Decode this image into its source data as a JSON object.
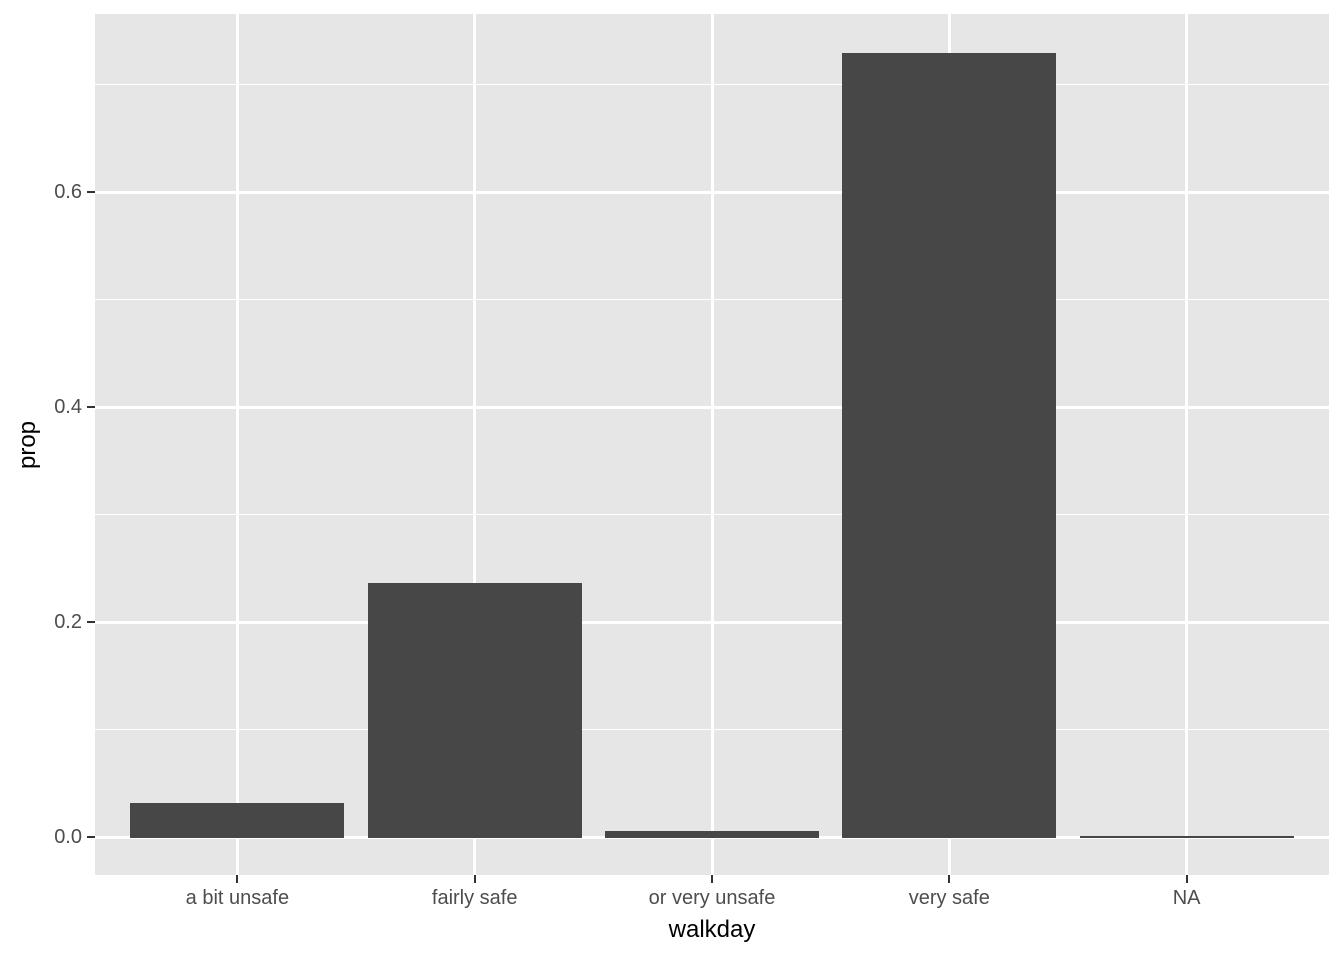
{
  "chart_data": {
    "type": "bar",
    "title": "",
    "xlabel": "walkday",
    "ylabel": "prop",
    "categories": [
      "a bit unsafe",
      "fairly safe",
      "or very unsafe",
      "very safe",
      "NA"
    ],
    "values": [
      0.032,
      0.236,
      0.006,
      0.729,
      0.001
    ],
    "ylim": [
      0,
      0.765
    ],
    "yticks_major": [
      0.0,
      0.2,
      0.4,
      0.6
    ],
    "ytick_labels": [
      "0.0",
      "0.2",
      "0.4",
      "0.6"
    ],
    "yticks_minor": [
      0.1,
      0.3,
      0.5,
      0.7
    ],
    "bar_width_fraction": 0.9,
    "grid": true,
    "legend": false,
    "colors": {
      "page_bg": "#FFFFFF",
      "panel_bg": "#E6E6E6",
      "grid_major": "#FFFFFF",
      "grid_minor": "#FFFFFF",
      "bar_fill": "#474747",
      "axis_text": "#4D4D4D",
      "axis_title": "#000000",
      "tick_mark": "#333333"
    }
  }
}
